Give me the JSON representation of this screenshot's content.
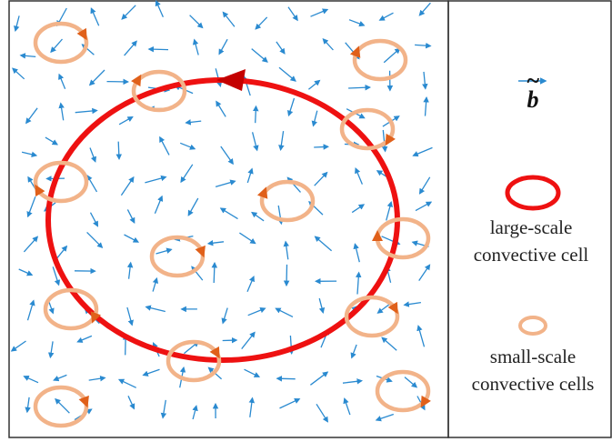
{
  "legend": {
    "vector_symbol": "b",
    "vector_decoration": "~",
    "large_cell_label_line1": "large-scale",
    "large_cell_label_line2": "convective cell",
    "small_cell_label_line1": "small-scale",
    "small_cell_label_line2": "convective cells"
  },
  "colors": {
    "arrow": "#2a8ad0",
    "large_cell": "#ee1111",
    "large_cell_arrowhead": "#c40000",
    "small_cell": "#f2b389",
    "small_cell_arrowhead": "#e0601a",
    "frame": "#333333"
  },
  "icons": [
    "blue-field-arrow-icon",
    "large-cell-ring-icon",
    "small-cell-ring-icon",
    "cell-direction-arrowhead-icon"
  ]
}
